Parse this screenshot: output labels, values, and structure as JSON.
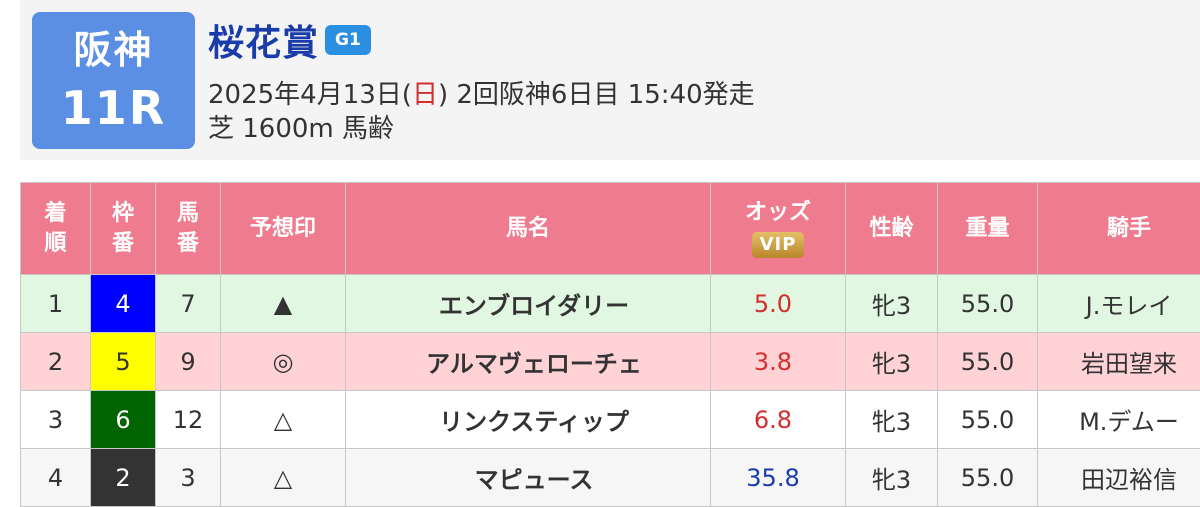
{
  "race": {
    "venue": "阪神",
    "number": "11R",
    "name": "桜花賞",
    "grade": "G1",
    "date_prefix": "2025年4月13日(",
    "weekday": "日",
    "date_suffix": ") 2回阪神6日目 15:40発走",
    "course": "芝 1600m 馬齢"
  },
  "columns": {
    "finish": [
      "着",
      "順"
    ],
    "bracket": [
      "枠",
      "番"
    ],
    "horse_no": [
      "馬",
      "番"
    ],
    "mark": "予想印",
    "horse_name": "馬名",
    "odds": "オッズ",
    "vip": "VIP",
    "sex_age": "性齢",
    "weight": "重量",
    "jockey": "騎手"
  },
  "rows": [
    {
      "finish": "1",
      "bracket": "4",
      "horse_no": "7",
      "mark": "▲",
      "horse_name": "エンブロイダリー",
      "odds": "5.0",
      "sex_age": "牝3",
      "weight": "55.0",
      "jockey": "J.モレイ",
      "row_bg": "#e2f7e2",
      "bracket_bg": "#0000ff",
      "bracket_fg": "#ffffff",
      "odds_color": "#d32f2f"
    },
    {
      "finish": "2",
      "bracket": "5",
      "horse_no": "9",
      "mark": "◎",
      "horse_name": "アルマヴェローチェ",
      "odds": "3.8",
      "sex_age": "牝3",
      "weight": "55.0",
      "jockey": "岩田望来",
      "row_bg": "#ffd3d6",
      "bracket_bg": "#ffff00",
      "bracket_fg": "#333333",
      "odds_color": "#d32f2f"
    },
    {
      "finish": "3",
      "bracket": "6",
      "horse_no": "12",
      "mark": "△",
      "horse_name": "リンクスティップ",
      "odds": "6.8",
      "sex_age": "牝3",
      "weight": "55.0",
      "jockey": "M.デムー",
      "row_bg": "#ffffff",
      "bracket_bg": "#006400",
      "bracket_fg": "#ffffff",
      "odds_color": "#d32f2f"
    },
    {
      "finish": "4",
      "bracket": "2",
      "horse_no": "3",
      "mark": "△",
      "horse_name": "マピュース",
      "odds": "35.8",
      "sex_age": "牝3",
      "weight": "55.0",
      "jockey": "田辺裕信",
      "row_bg": "#f6f6f6",
      "bracket_bg": "#333333",
      "bracket_fg": "#ffffff",
      "odds_color": "#1a3ca8"
    }
  ]
}
